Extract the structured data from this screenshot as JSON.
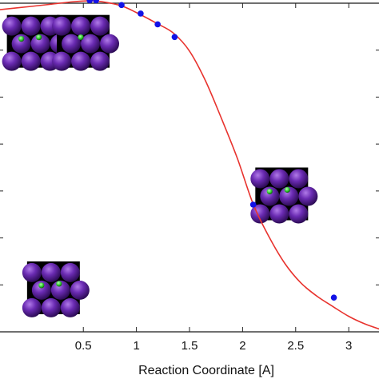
{
  "chart_data": {
    "type": "line",
    "title": "",
    "xlabel": "Reaction Coordinate [A]",
    "ylabel": "",
    "xlim": [
      -0.3,
      3.3
    ],
    "ylim": [
      0,
      7
    ],
    "x_ticks": [
      0.5,
      1,
      1.5,
      2,
      2.5,
      3
    ],
    "x_tick_labels": [
      "0.5",
      "1",
      "1.5",
      "2",
      "2.5",
      "3"
    ],
    "y_ticks": [
      0,
      1,
      2,
      3,
      4,
      5,
      6,
      7
    ],
    "grid": false,
    "series": [
      {
        "style": "curve",
        "color": "#e8332e",
        "x": [
          -0.3,
          0.0,
          0.2,
          0.4,
          0.55,
          0.65,
          0.85,
          1.0,
          1.2,
          1.35,
          1.5,
          1.65,
          1.8,
          1.95,
          2.1,
          2.25,
          2.4,
          2.55,
          2.7,
          2.85,
          3.0,
          3.15,
          3.3
        ],
        "y": [
          6.86,
          6.93,
          6.98,
          7.03,
          7.05,
          7.04,
          6.95,
          6.8,
          6.56,
          6.36,
          5.98,
          5.35,
          4.55,
          3.7,
          2.72,
          2.02,
          1.45,
          1.04,
          0.76,
          0.54,
          0.33,
          0.17,
          0.05
        ]
      },
      {
        "style": "points",
        "color": "#1212e6",
        "x": [
          0.56,
          0.62,
          0.86,
          1.04,
          1.2,
          1.36,
          2.1,
          2.86
        ],
        "y": [
          7.06,
          7.06,
          6.96,
          6.78,
          6.55,
          6.28,
          2.71,
          0.73
        ]
      }
    ],
    "insets": [
      {
        "icon": "atom-surface-2-adsorbates",
        "x": -0.22,
        "y": 6.75
      },
      {
        "icon": "atom-surface-1-adsorbate",
        "x": 0.25,
        "y": 6.75
      },
      {
        "icon": "atom-surface-2-adsorbates",
        "x": 2.12,
        "y": 3.5
      },
      {
        "icon": "atom-surface-2-adsorbates",
        "x": -0.03,
        "y": 1.5
      }
    ],
    "colors": {
      "atom": "#5a1d9a",
      "adsorbate": "#2ecc2e",
      "frame": "#000000"
    }
  }
}
